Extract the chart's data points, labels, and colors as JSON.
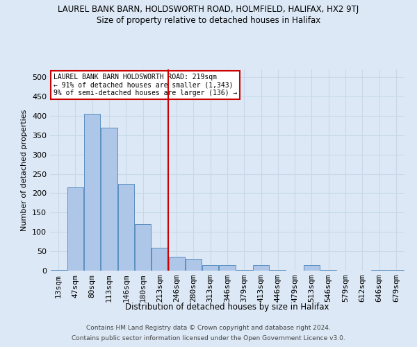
{
  "title1": "LAUREL BANK BARN, HOLDSWORTH ROAD, HOLMFIELD, HALIFAX, HX2 9TJ",
  "title2": "Size of property relative to detached houses in Halifax",
  "xlabel": "Distribution of detached houses by size in Halifax",
  "ylabel": "Number of detached properties",
  "categories": [
    "13sqm",
    "47sqm",
    "80sqm",
    "113sqm",
    "146sqm",
    "180sqm",
    "213sqm",
    "246sqm",
    "280sqm",
    "313sqm",
    "346sqm",
    "379sqm",
    "413sqm",
    "446sqm",
    "479sqm",
    "513sqm",
    "546sqm",
    "579sqm",
    "612sqm",
    "646sqm",
    "679sqm"
  ],
  "values": [
    2,
    215,
    405,
    370,
    225,
    120,
    60,
    35,
    30,
    15,
    15,
    2,
    15,
    2,
    0,
    15,
    2,
    0,
    0,
    2,
    2
  ],
  "bar_color": "#aec6e8",
  "bar_edge_color": "#5a8fc0",
  "vline_color": "#cc0000",
  "annotation_text": "LAUREL BANK BARN HOLDSWORTH ROAD: 219sqm\n← 91% of detached houses are smaller (1,343)\n9% of semi-detached houses are larger (136) →",
  "annotation_box_color": "#ffffff",
  "annotation_box_edge": "#cc0000",
  "ylim": [
    0,
    520
  ],
  "yticks": [
    0,
    50,
    100,
    150,
    200,
    250,
    300,
    350,
    400,
    450,
    500
  ],
  "grid_color": "#c8d8e8",
  "bg_color": "#dce8f5",
  "footer1": "Contains HM Land Registry data © Crown copyright and database right 2024.",
  "footer2": "Contains public sector information licensed under the Open Government Licence v3.0."
}
